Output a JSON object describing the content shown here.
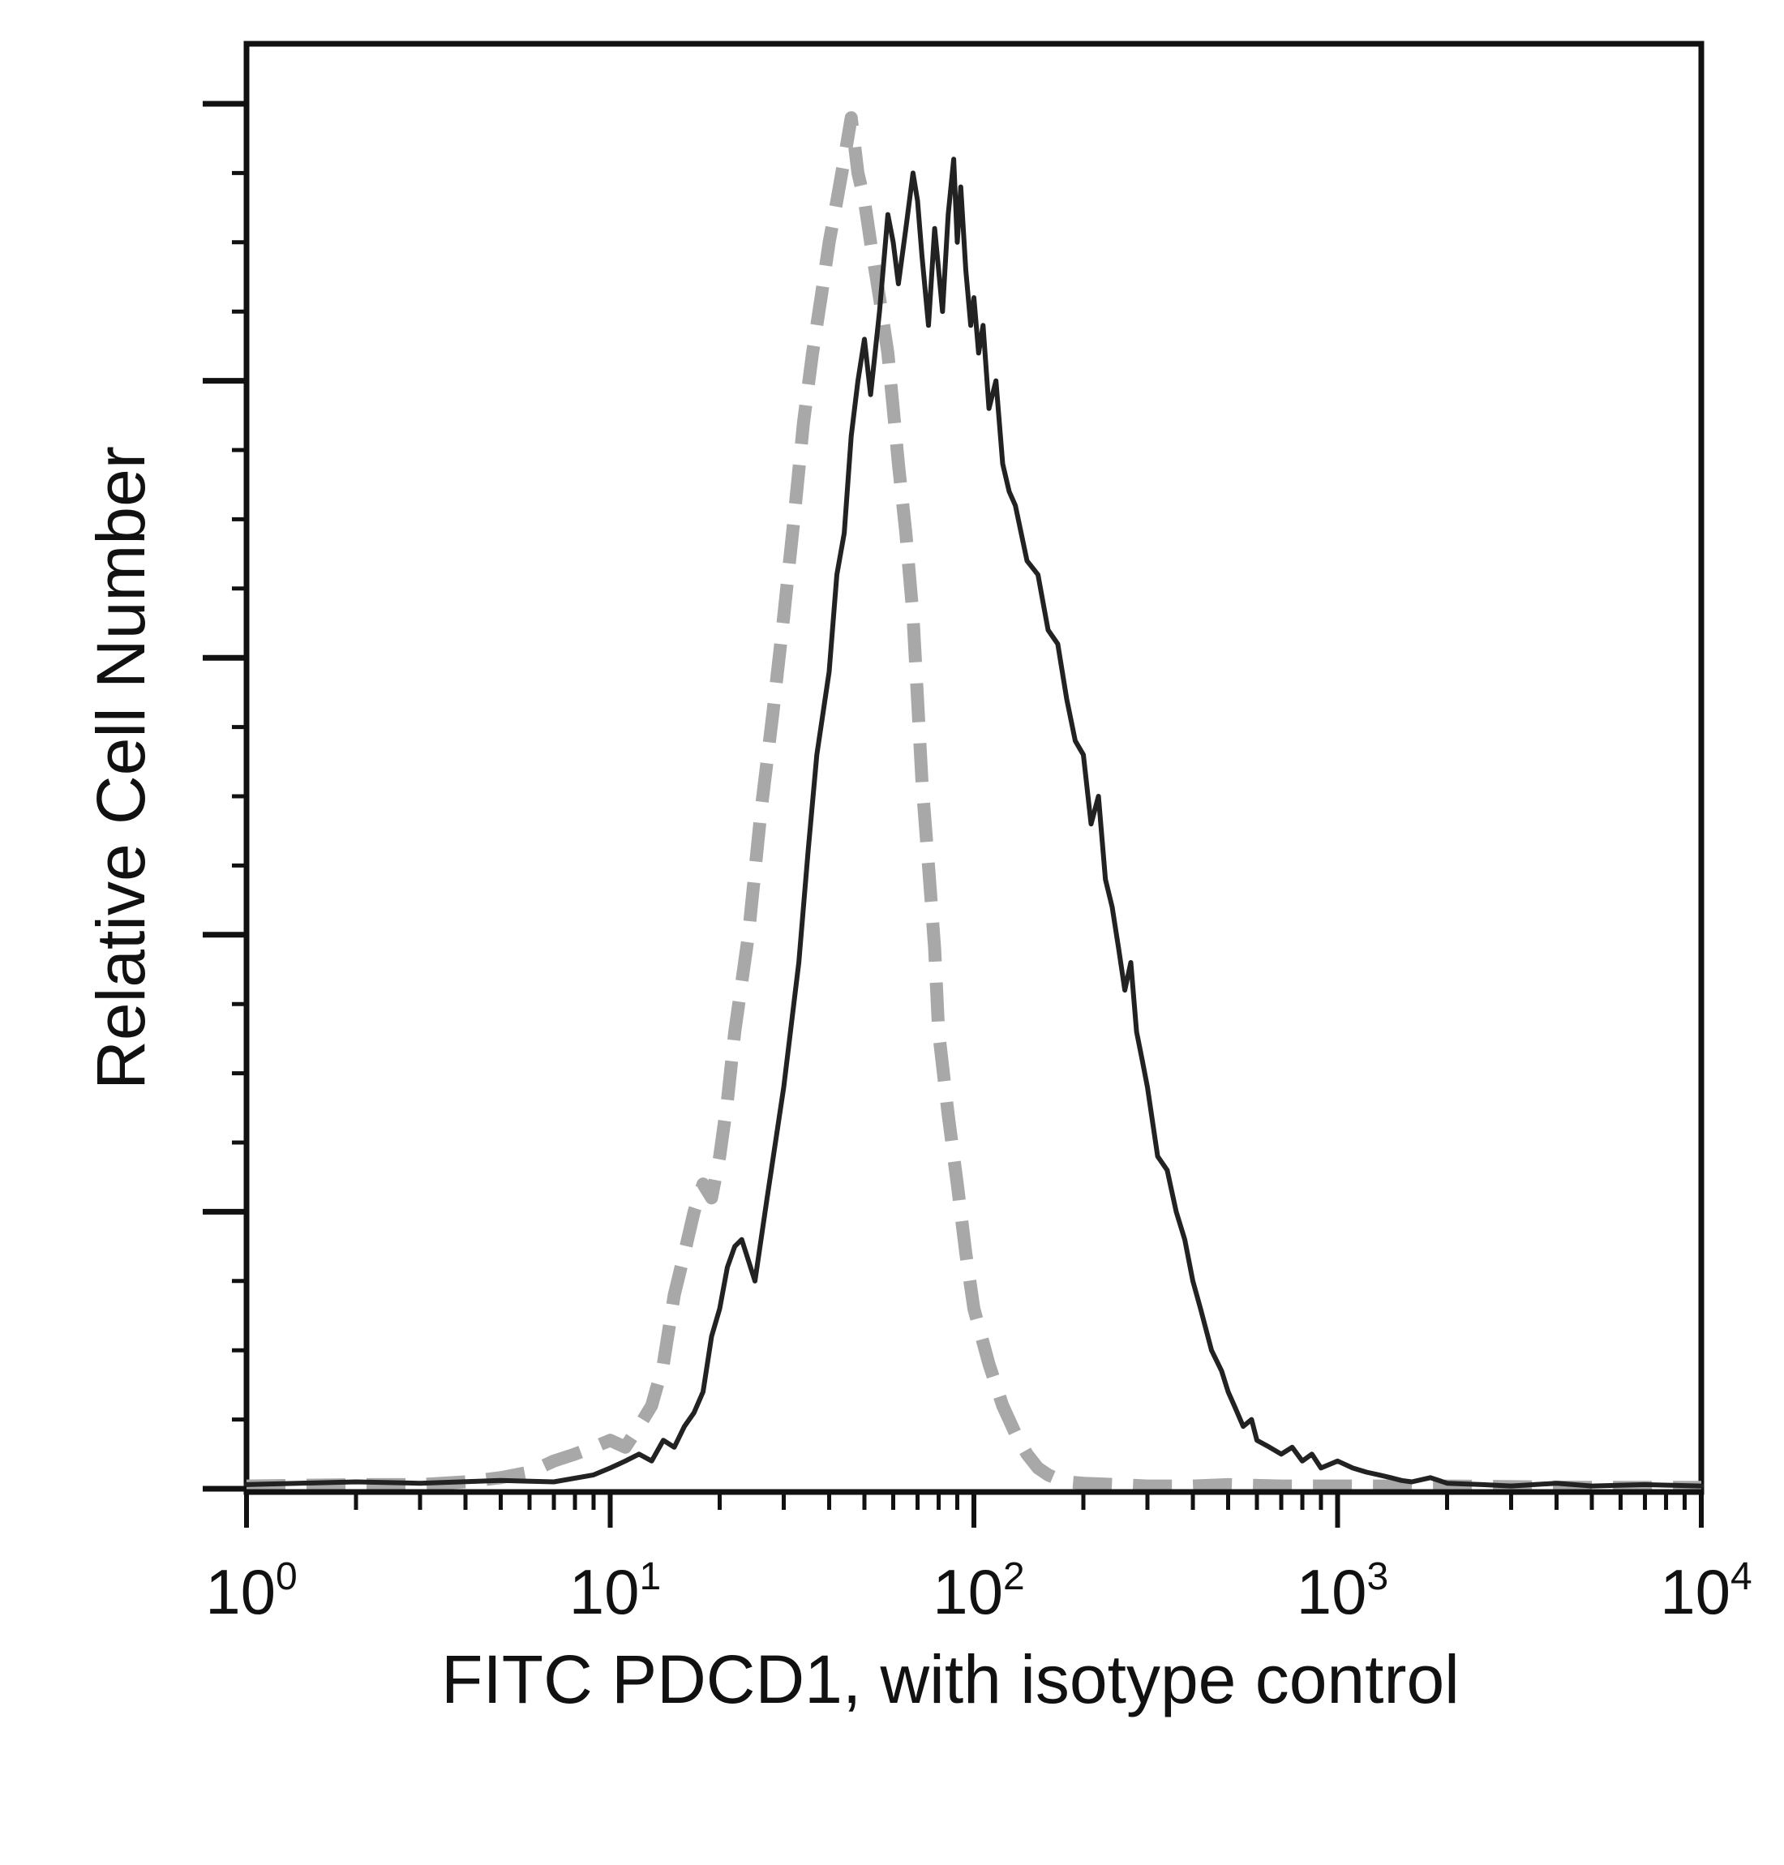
{
  "chart_data": {
    "type": "line",
    "title": "",
    "xlabel": "FITC PDCD1, with isotype control",
    "ylabel": "Relative Cell Number",
    "x_scale": "log",
    "xlim": [
      1,
      10000
    ],
    "ylim": [
      0,
      100
    ],
    "grid": false,
    "legend": "none",
    "x_ticks": [
      {
        "value": 1,
        "base": "10",
        "exp": "0"
      },
      {
        "value": 10,
        "base": "10",
        "exp": "1"
      },
      {
        "value": 100,
        "base": "10",
        "exp": "2"
      },
      {
        "value": 1000,
        "base": "10",
        "exp": "3"
      },
      {
        "value": 10000,
        "base": "10",
        "exp": "4"
      }
    ],
    "series": [
      {
        "style": "solid",
        "color": "#222222",
        "x": [
          1,
          2,
          3,
          5,
          7,
          9,
          10,
          11,
          12,
          13,
          14,
          15,
          16,
          17,
          18,
          19,
          20,
          21,
          22,
          23,
          25,
          27,
          30,
          33,
          35,
          37,
          40,
          42,
          44,
          46,
          48,
          50,
          52,
          55,
          58,
          60,
          62,
          65,
          68,
          70,
          72,
          75,
          78,
          80,
          82,
          85,
          88,
          90,
          92,
          95,
          98,
          100,
          103,
          106,
          110,
          115,
          120,
          125,
          130,
          140,
          150,
          160,
          170,
          180,
          190,
          200,
          210,
          220,
          230,
          240,
          250,
          260,
          270,
          280,
          290,
          300,
          320,
          340,
          360,
          380,
          400,
          420,
          450,
          480,
          500,
          520,
          550,
          580,
          600,
          650,
          700,
          750,
          800,
          850,
          900,
          1000,
          1100,
          1200,
          1300,
          1400,
          1500,
          1600,
          1800,
          2000,
          2500,
          3000,
          4000,
          5000,
          7000,
          10000
        ],
        "y": [
          0.3,
          0.5,
          0.4,
          0.6,
          0.5,
          1.0,
          1.5,
          2.0,
          2.5,
          2.0,
          3.5,
          3.0,
          4.5,
          5.5,
          7.0,
          11.0,
          13.0,
          16.0,
          17.5,
          18.0,
          15.0,
          21.0,
          29.0,
          38.0,
          46.0,
          53.0,
          59.0,
          66.0,
          69.0,
          76.0,
          80.0,
          83.0,
          79.0,
          85.0,
          92.0,
          90.0,
          87.0,
          91.0,
          95.0,
          93.0,
          89.0,
          84.0,
          91.0,
          88.0,
          85.0,
          92.0,
          96.0,
          90.0,
          94.0,
          88.0,
          84.0,
          86.0,
          82.0,
          84.0,
          78.0,
          80.0,
          74.0,
          72.0,
          71.0,
          67.0,
          66.0,
          62.0,
          61.0,
          57.0,
          54.0,
          53.0,
          48.0,
          50.0,
          44.0,
          42.0,
          39.0,
          36.0,
          38.0,
          33.0,
          31.0,
          29.0,
          24.0,
          23.0,
          20.0,
          18.0,
          15.0,
          13.0,
          10.0,
          8.5,
          7.0,
          6.0,
          4.5,
          5.0,
          3.5,
          3.0,
          2.5,
          3.0,
          2.0,
          2.5,
          1.5,
          2.0,
          1.5,
          1.2,
          1.0,
          0.8,
          0.6,
          0.5,
          0.8,
          0.4,
          0.3,
          0.2,
          0.4,
          0.2,
          0.3,
          0.2
        ]
      },
      {
        "style": "dashed",
        "color": "#a8a8a8",
        "x": [
          1,
          2,
          3,
          4,
          5,
          6,
          7,
          8,
          9,
          10,
          11,
          12,
          13,
          14,
          15,
          16,
          17,
          18,
          19,
          20,
          21,
          22,
          24,
          26,
          28,
          30,
          32,
          34,
          36,
          38,
          40,
          42,
          44,
          46,
          48,
          50,
          52,
          55,
          58,
          60,
          62,
          65,
          68,
          70,
          72,
          75,
          78,
          80,
          85,
          90,
          95,
          100,
          110,
          120,
          130,
          140,
          150,
          160,
          170,
          180,
          200,
          250,
          300,
          400,
          500,
          700,
          1000,
          1500,
          2000,
          5000,
          10000
        ],
        "y": [
          0.2,
          0.3,
          0.3,
          0.5,
          0.8,
          1.2,
          2.0,
          2.5,
          3.0,
          3.5,
          3.0,
          4.5,
          6.0,
          9.0,
          14.0,
          17.0,
          20.0,
          22.0,
          21.0,
          24.0,
          28.0,
          33.0,
          40.0,
          49.0,
          56.0,
          63.0,
          70.0,
          77.0,
          82.0,
          86.0,
          90.0,
          93.0,
          96.0,
          99.0,
          95.0,
          93.0,
          90.0,
          86.0,
          82.0,
          78.0,
          74.0,
          69.0,
          63.0,
          57.0,
          51.0,
          45.0,
          39.0,
          33.0,
          27.0,
          22.0,
          17.0,
          13.0,
          9.0,
          6.0,
          4.0,
          2.5,
          1.5,
          1.0,
          0.7,
          0.5,
          0.4,
          0.3,
          0.2,
          0.2,
          0.3,
          0.2,
          0.2,
          0.2,
          0.2,
          0.1,
          0.1
        ]
      }
    ]
  }
}
